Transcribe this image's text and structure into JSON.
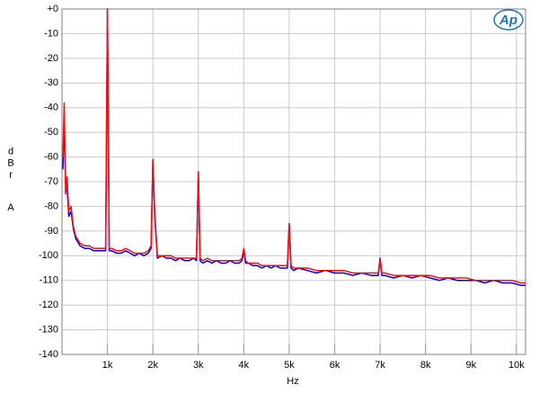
{
  "chart_data": {
    "type": "line",
    "logo": "Ap",
    "ylabel": "dBr",
    "ylabel_unit": "A",
    "xlabel": "Hz",
    "xlim": [
      0,
      10200
    ],
    "ylim": [
      -140,
      0
    ],
    "xticks": [
      {
        "value": 1000,
        "label": "1k"
      },
      {
        "value": 2000,
        "label": "2k"
      },
      {
        "value": 3000,
        "label": "3k"
      },
      {
        "value": 4000,
        "label": "4k"
      },
      {
        "value": 5000,
        "label": "5k"
      },
      {
        "value": 6000,
        "label": "6k"
      },
      {
        "value": 7000,
        "label": "7k"
      },
      {
        "value": 8000,
        "label": "8k"
      },
      {
        "value": 9000,
        "label": "9k"
      },
      {
        "value": 10000,
        "label": "10k"
      }
    ],
    "yticks": [
      {
        "value": 0,
        "label": "+0"
      },
      -10,
      -20,
      -30,
      -40,
      -50,
      -60,
      -70,
      -80,
      -90,
      -100,
      -110,
      -120,
      -130,
      -140
    ],
    "grid": true,
    "x": [
      20,
      50,
      80,
      110,
      150,
      200,
      250,
      300,
      400,
      500,
      600,
      700,
      800,
      900,
      960,
      1000,
      1040,
      1100,
      1200,
      1300,
      1400,
      1500,
      1600,
      1700,
      1800,
      1900,
      1960,
      2000,
      2040,
      2100,
      2200,
      2300,
      2400,
      2500,
      2600,
      2700,
      2800,
      2900,
      2960,
      3000,
      3040,
      3100,
      3200,
      3300,
      3400,
      3500,
      3600,
      3700,
      3800,
      3900,
      3960,
      4000,
      4040,
      4100,
      4200,
      4300,
      4400,
      4500,
      4600,
      4700,
      4800,
      4900,
      4960,
      5000,
      5040,
      5100,
      5200,
      5400,
      5600,
      5800,
      6000,
      6200,
      6400,
      6600,
      6800,
      6960,
      7000,
      7040,
      7100,
      7300,
      7500,
      7700,
      7900,
      8100,
      8300,
      8500,
      8700,
      8900,
      9100,
      9300,
      9500,
      9700,
      9900,
      10100,
      10200
    ],
    "series": [
      {
        "color": "#0000e0",
        "values": [
          -65,
          -45,
          -70,
          -72,
          -84,
          -82,
          -89,
          -93,
          -96,
          -97,
          -97,
          -98,
          -98,
          -98,
          -98,
          0,
          -98,
          -98,
          -99,
          -99,
          -98,
          -99,
          -100,
          -99,
          -100,
          -99,
          -97,
          -61,
          -84,
          -101,
          -100,
          -101,
          -101,
          -102,
          -101,
          -102,
          -102,
          -101,
          -102,
          -66,
          -102,
          -103,
          -102,
          -103,
          -102,
          -103,
          -103,
          -102,
          -103,
          -103,
          -102,
          -98,
          -103,
          -103,
          -104,
          -104,
          -105,
          -104,
          -105,
          -104,
          -105,
          -105,
          -105,
          -87,
          -105,
          -106,
          -105,
          -106,
          -107,
          -106,
          -107,
          -107,
          -108,
          -107,
          -108,
          -108,
          -101,
          -108,
          -108,
          -109,
          -108,
          -109,
          -108,
          -109,
          -110,
          -109,
          -110,
          -110,
          -110,
          -111,
          -110,
          -111,
          -111,
          -112,
          -112
        ]
      },
      {
        "color": "#ee1111",
        "values": [
          -60,
          -38,
          -75,
          -68,
          -82,
          -80,
          -88,
          -92,
          -95,
          -96,
          -96,
          -97,
          -97,
          -97,
          -97,
          0,
          -97,
          -97,
          -98,
          -98,
          -97,
          -98,
          -99,
          -99,
          -99,
          -98,
          -96,
          -61,
          -82,
          -100,
          -100,
          -100,
          -100,
          -101,
          -101,
          -101,
          -101,
          -101,
          -101,
          -66,
          -101,
          -102,
          -101,
          -102,
          -102,
          -102,
          -102,
          -102,
          -102,
          -102,
          -101,
          -97,
          -102,
          -103,
          -103,
          -103,
          -104,
          -104,
          -104,
          -104,
          -104,
          -104,
          -104,
          -87,
          -104,
          -105,
          -105,
          -105,
          -106,
          -106,
          -106,
          -106,
          -107,
          -107,
          -107,
          -107,
          -101,
          -107,
          -107,
          -108,
          -108,
          -108,
          -108,
          -108,
          -109,
          -109,
          -109,
          -109,
          -110,
          -110,
          -110,
          -110,
          -110,
          -111,
          -111
        ]
      }
    ]
  }
}
